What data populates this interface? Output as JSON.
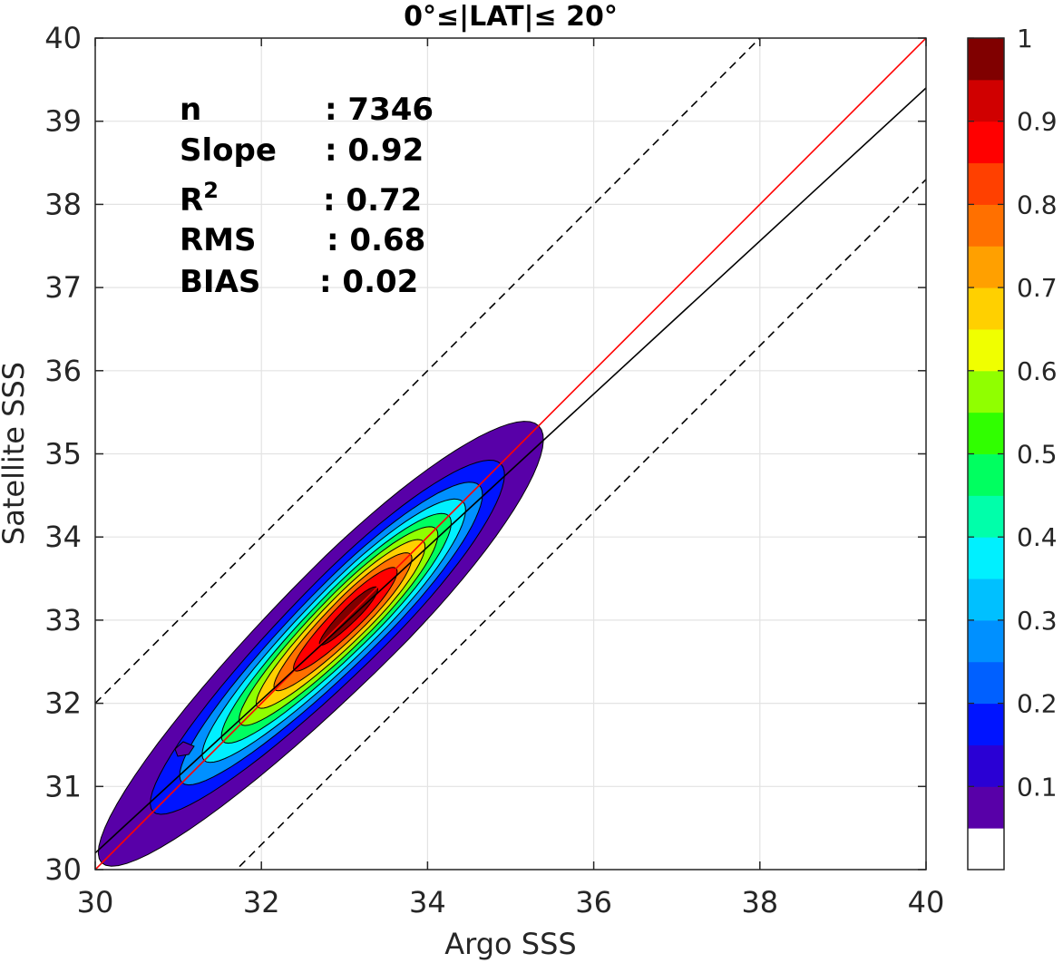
{
  "chart_data": {
    "type": "contour",
    "title": "0°≤|LAT|≤ 20°",
    "xlabel": "Argo SSS",
    "ylabel": "Satellite SSS",
    "xlim": [
      30,
      40
    ],
    "ylim": [
      30,
      40
    ],
    "xticks": [
      30,
      32,
      34,
      36,
      38,
      40
    ],
    "yticks": [
      30,
      31,
      32,
      33,
      34,
      35,
      36,
      37,
      38,
      39,
      40
    ],
    "grid": true,
    "stats": [
      {
        "label": "n",
        "value": ": 7346"
      },
      {
        "label": "Slope",
        "value": ": 0.92"
      },
      {
        "label": "R",
        "sup": "2",
        "value": ": 0.72"
      },
      {
        "label": "RMS",
        "value": ": 0.68"
      },
      {
        "label": "BIAS",
        "value": ": 0.02"
      }
    ],
    "lines": [
      {
        "name": "one-to-one",
        "color": "#ff0000",
        "style": "solid",
        "slope": 1,
        "intercept": 0
      },
      {
        "name": "regression",
        "color": "#000000",
        "style": "solid",
        "slope": 0.92,
        "intercept": 2.6
      },
      {
        "name": "upper-bound",
        "color": "#000000",
        "style": "dashed",
        "slope": 1,
        "intercept": 2.0
      },
      {
        "name": "lower-bound",
        "color": "#000000",
        "style": "dashed",
        "slope": 1,
        "intercept": -1.7
      }
    ],
    "density_center": {
      "x": 33.1,
      "y": 33.1,
      "peak": 1.0
    },
    "contour_levels": [
      0.05,
      0.15,
      0.25,
      0.35,
      0.45,
      0.55,
      0.65,
      0.75,
      0.85,
      0.95
    ],
    "colorbar": {
      "ticks": [
        "0.1",
        "0.2",
        "0.3",
        "0.4",
        "0.5",
        "0.6",
        "0.7",
        "0.8",
        "0.9",
        "1"
      ],
      "tick_values": [
        0.1,
        0.2,
        0.3,
        0.4,
        0.5,
        0.6,
        0.7,
        0.8,
        0.9,
        1.0
      ],
      "colors": [
        "#ffffff",
        "#5800a8",
        "#2a00d4",
        "#0014ff",
        "#0060ff",
        "#0090ff",
        "#00c0ff",
        "#00f0ff",
        "#00ffaa",
        "#00ff60",
        "#30ff00",
        "#90ff00",
        "#f0ff00",
        "#ffd000",
        "#ffa000",
        "#ff7000",
        "#ff4000",
        "#ff0000",
        "#d00000",
        "#800000"
      ]
    }
  }
}
